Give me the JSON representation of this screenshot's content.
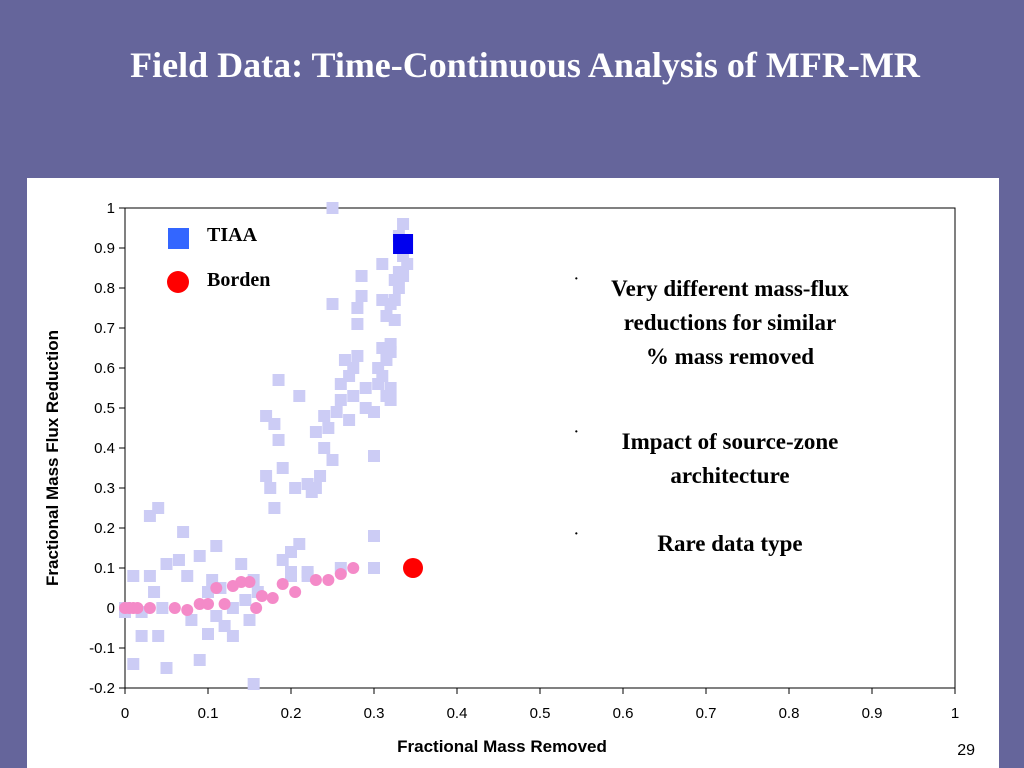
{
  "slide": {
    "title": "Field Data: Time-Continuous Analysis of MFR-MR",
    "page_number": "29",
    "background_color": "#65659b"
  },
  "bullets": [
    {
      "text": "Very different mass-flux\nreductions for similar\n% mass removed"
    },
    {
      "text": "Impact of source-zone\narchitecture"
    },
    {
      "text": "Rare data type"
    }
  ],
  "chart_data": {
    "type": "scatter",
    "xlabel": "Fractional Mass Removed",
    "ylabel": "Fractional Mass Flux Reduction",
    "xlim": [
      0,
      1
    ],
    "ylim": [
      -0.2,
      1
    ],
    "xticks": [
      "0",
      "0.1",
      "0.2",
      "0.3",
      "0.4",
      "0.5",
      "0.6",
      "0.7",
      "0.8",
      "0.9",
      "1"
    ],
    "yticks": [
      "1",
      "0.9",
      "0.8",
      "0.7",
      "0.6",
      "0.5",
      "0.4",
      "0.3",
      "0.2",
      "0.1",
      "0",
      "-0.1",
      "-0.2"
    ],
    "grid": false,
    "legend": [
      {
        "name": "TIAA",
        "color": "#3366ff",
        "marker": "square"
      },
      {
        "name": "Borden",
        "color": "#ff0000",
        "marker": "circle"
      }
    ],
    "series": [
      {
        "name": "TIAA",
        "color": "#ccccf5",
        "marker": "square",
        "points": [
          [
            0.0,
            0.0
          ],
          [
            0.0,
            -0.01
          ],
          [
            0.01,
            0.08
          ],
          [
            0.01,
            -0.14
          ],
          [
            0.02,
            -0.07
          ],
          [
            0.02,
            -0.01
          ],
          [
            0.03,
            0.08
          ],
          [
            0.03,
            0.23
          ],
          [
            0.035,
            0.04
          ],
          [
            0.04,
            0.25
          ],
          [
            0.04,
            -0.07
          ],
          [
            0.045,
            0.0
          ],
          [
            0.05,
            0.11
          ],
          [
            0.05,
            -0.15
          ],
          [
            0.065,
            0.12
          ],
          [
            0.07,
            0.19
          ],
          [
            0.075,
            0.08
          ],
          [
            0.08,
            -0.03
          ],
          [
            0.09,
            0.13
          ],
          [
            0.09,
            -0.13
          ],
          [
            0.1,
            0.04
          ],
          [
            0.1,
            -0.065
          ],
          [
            0.105,
            0.07
          ],
          [
            0.11,
            0.155
          ],
          [
            0.11,
            -0.02
          ],
          [
            0.115,
            0.05
          ],
          [
            0.12,
            -0.045
          ],
          [
            0.13,
            0.0
          ],
          [
            0.13,
            -0.07
          ],
          [
            0.14,
            0.11
          ],
          [
            0.145,
            0.02
          ],
          [
            0.15,
            -0.03
          ],
          [
            0.155,
            0.07
          ],
          [
            0.16,
            0.04
          ],
          [
            0.155,
            -0.19
          ],
          [
            0.17,
            0.48
          ],
          [
            0.17,
            0.33
          ],
          [
            0.175,
            0.3
          ],
          [
            0.18,
            0.25
          ],
          [
            0.18,
            0.46
          ],
          [
            0.185,
            0.57
          ],
          [
            0.185,
            0.42
          ],
          [
            0.19,
            0.12
          ],
          [
            0.19,
            0.35
          ],
          [
            0.2,
            0.14
          ],
          [
            0.2,
            0.08
          ],
          [
            0.205,
            0.3
          ],
          [
            0.21,
            0.53
          ],
          [
            0.21,
            0.16
          ],
          [
            0.22,
            0.08
          ],
          [
            0.22,
            0.31
          ],
          [
            0.225,
            0.29
          ],
          [
            0.23,
            0.44
          ],
          [
            0.23,
            0.3
          ],
          [
            0.235,
            0.33
          ],
          [
            0.24,
            0.48
          ],
          [
            0.24,
            0.4
          ],
          [
            0.245,
            0.45
          ],
          [
            0.25,
            0.37
          ],
          [
            0.25,
            1.0
          ],
          [
            0.25,
            0.76
          ],
          [
            0.255,
            0.49
          ],
          [
            0.26,
            0.52
          ],
          [
            0.26,
            0.56
          ],
          [
            0.265,
            0.62
          ],
          [
            0.27,
            0.47
          ],
          [
            0.27,
            0.58
          ],
          [
            0.275,
            0.53
          ],
          [
            0.275,
            0.6
          ],
          [
            0.28,
            0.71
          ],
          [
            0.28,
            0.75
          ],
          [
            0.28,
            0.63
          ],
          [
            0.285,
            0.78
          ],
          [
            0.285,
            0.83
          ],
          [
            0.29,
            0.55
          ],
          [
            0.29,
            0.5
          ],
          [
            0.3,
            0.38
          ],
          [
            0.3,
            0.49
          ],
          [
            0.3,
            0.18
          ],
          [
            0.305,
            0.56
          ],
          [
            0.31,
            0.58
          ],
          [
            0.31,
            0.65
          ],
          [
            0.31,
            0.86
          ],
          [
            0.315,
            0.53
          ],
          [
            0.315,
            0.73
          ],
          [
            0.32,
            0.76
          ],
          [
            0.32,
            0.64
          ],
          [
            0.32,
            0.55
          ],
          [
            0.32,
            0.52
          ],
          [
            0.325,
            0.72
          ],
          [
            0.325,
            0.82
          ],
          [
            0.33,
            0.84
          ],
          [
            0.33,
            0.93
          ],
          [
            0.335,
            0.96
          ],
          [
            0.335,
            0.88
          ],
          [
            0.34,
            0.86
          ],
          [
            0.335,
            0.83
          ],
          [
            0.33,
            0.8
          ],
          [
            0.325,
            0.77
          ],
          [
            0.31,
            0.77
          ],
          [
            0.315,
            0.62
          ],
          [
            0.32,
            0.66
          ],
          [
            0.305,
            0.6
          ],
          [
            0.3,
            0.1
          ],
          [
            0.26,
            0.1
          ],
          [
            0.22,
            0.09
          ],
          [
            0.2,
            0.09
          ]
        ]
      },
      {
        "name": "Borden",
        "color": "#f48ac8",
        "marker": "circle",
        "points": [
          [
            0.0,
            0.0
          ],
          [
            0.005,
            0.0
          ],
          [
            0.01,
            0.0
          ],
          [
            0.015,
            0.0
          ],
          [
            0.03,
            0.0
          ],
          [
            0.06,
            0.0
          ],
          [
            0.075,
            -0.005
          ],
          [
            0.09,
            0.01
          ],
          [
            0.1,
            0.01
          ],
          [
            0.11,
            0.05
          ],
          [
            0.12,
            0.01
          ],
          [
            0.13,
            0.055
          ],
          [
            0.14,
            0.065
          ],
          [
            0.15,
            0.065
          ],
          [
            0.158,
            0.0
          ],
          [
            0.165,
            0.03
          ],
          [
            0.178,
            0.025
          ],
          [
            0.19,
            0.06
          ],
          [
            0.205,
            0.04
          ],
          [
            0.23,
            0.07
          ],
          [
            0.245,
            0.07
          ],
          [
            0.26,
            0.085
          ],
          [
            0.275,
            0.1
          ]
        ]
      }
    ],
    "highlights": [
      {
        "series": "TIAA",
        "color": "#0000ee",
        "marker": "square",
        "point": [
          0.335,
          0.91
        ]
      },
      {
        "series": "Borden",
        "color": "#ff0000",
        "marker": "circle",
        "point": [
          0.347,
          0.1
        ]
      }
    ]
  }
}
